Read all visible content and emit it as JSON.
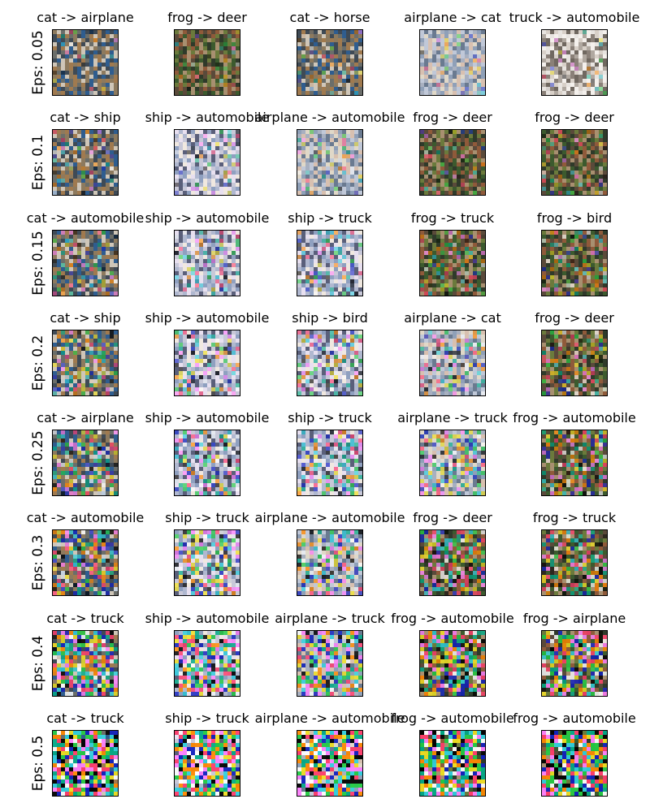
{
  "row_labels": [
    "Eps: 0.05",
    "Eps: 0.1",
    "Eps: 0.15",
    "Eps: 0.2",
    "Eps: 0.25",
    "Eps: 0.3",
    "Eps: 0.4",
    "Eps: 0.5"
  ],
  "rows": [
    {
      "eps": "0.05",
      "titles": [
        "cat -> airplane",
        "frog -> deer",
        "cat -> horse",
        "airplane -> cat",
        "truck -> automobile"
      ]
    },
    {
      "eps": "0.1",
      "titles": [
        "cat -> ship",
        "ship -> automobile",
        "airplane -> automobile",
        "frog -> deer",
        "frog -> deer"
      ]
    },
    {
      "eps": "0.15",
      "titles": [
        "cat -> automobile",
        "ship -> automobile",
        "ship -> truck",
        "frog -> truck",
        "frog -> bird"
      ]
    },
    {
      "eps": "0.2",
      "titles": [
        "cat -> ship",
        "ship -> automobile",
        "ship -> bird",
        "airplane -> cat",
        "frog -> deer"
      ]
    },
    {
      "eps": "0.25",
      "titles": [
        "cat -> airplane",
        "ship -> automobile",
        "ship -> truck",
        "airplane -> truck",
        "frog -> automobile"
      ]
    },
    {
      "eps": "0.3",
      "titles": [
        "cat -> automobile",
        "ship -> truck",
        "airplane -> automobile",
        "frog -> deer",
        "frog -> truck"
      ]
    },
    {
      "eps": "0.4",
      "titles": [
        "cat -> truck",
        "ship -> automobile",
        "airplane -> truck",
        "frog -> automobile",
        "frog -> airplane"
      ]
    },
    {
      "eps": "0.5",
      "titles": [
        "cat -> truck",
        "ship -> truck",
        "airplane -> automobile",
        "frog -> automobile",
        "frog -> automobile"
      ]
    }
  ],
  "palettes": {
    "cat": [
      "#3f4a55",
      "#6b6e6a",
      "#8d7a5e",
      "#2f5d8f",
      "#a07a4f",
      "#cfc6b8"
    ],
    "frog": [
      "#3c5a2e",
      "#6b7a3c",
      "#8f5a3a",
      "#2f3a2a",
      "#a89070",
      "#5a4a3a"
    ],
    "ship": [
      "#c8c8d8",
      "#e8e0f0",
      "#8fa0c0",
      "#5a5f7a",
      "#f0e8e0",
      "#b0b8d0"
    ],
    "airplane": [
      "#8fa0b8",
      "#c0c8d8",
      "#e0d8c8",
      "#6a7a90",
      "#d8c0b0",
      "#a8b0c0"
    ],
    "truck": [
      "#e8e4e0",
      "#b0a8a0",
      "#706860",
      "#d8d0c8",
      "#f4f0ec",
      "#8a8078"
    ],
    "noise": [
      "#ff3b6b",
      "#2fd0e0",
      "#22cc44",
      "#f0e020",
      "#1020c0",
      "#ff80ff",
      "#ffffff",
      "#000000",
      "#ff8800",
      "#00aa88"
    ]
  }
}
